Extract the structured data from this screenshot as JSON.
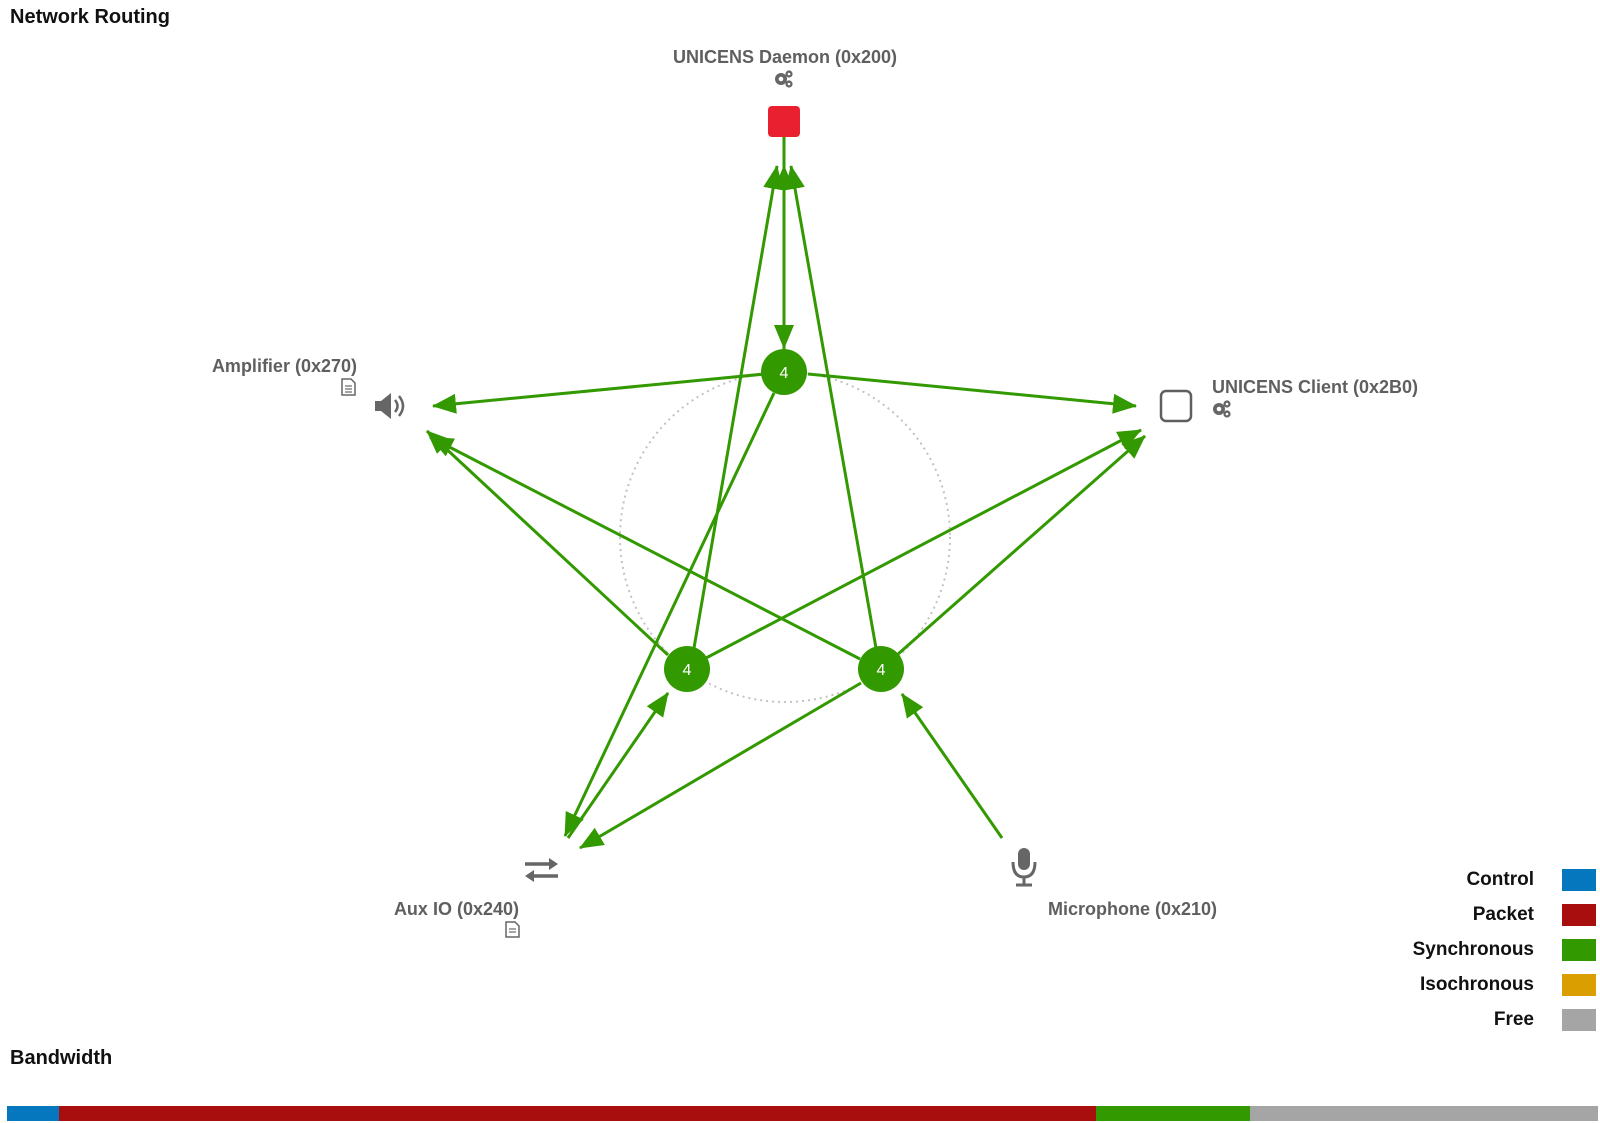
{
  "title": "Network Routing",
  "bandwidth_title": "Bandwidth",
  "colors": {
    "control": "#0477BF",
    "packet": "#A90E0E",
    "synchronous": "#339900",
    "isochronous": "#DB9E00",
    "free": "#A5A5A5",
    "daemon_square": "#E8202F",
    "label_gray": "#5F5F5F"
  },
  "nodes": {
    "daemon": {
      "label": "UNICENS Daemon (0x200)",
      "icons": [
        "gears-icon",
        "stop-square-icon"
      ]
    },
    "client": {
      "label": "UNICENS Client (0x2B0)",
      "icons": [
        "square-outline-icon",
        "gears-icon"
      ]
    },
    "amplifier": {
      "label": "Amplifier (0x270)",
      "icons": [
        "document-icon",
        "speaker-icon"
      ]
    },
    "auxio": {
      "label": "Aux IO (0x240)",
      "icons": [
        "exchange-arrows-icon",
        "document-icon"
      ]
    },
    "microphone": {
      "label": "Microphone (0x210)",
      "icons": [
        "microphone-icon"
      ]
    }
  },
  "hubs": {
    "top": {
      "label": "4"
    },
    "left": {
      "label": "4"
    },
    "right": {
      "label": "4"
    }
  },
  "legend": [
    {
      "key": "control",
      "label": "Control"
    },
    {
      "key": "packet",
      "label": "Packet"
    },
    {
      "key": "synchronous",
      "label": "Synchronous"
    },
    {
      "key": "isochronous",
      "label": "Isochronous"
    },
    {
      "key": "free",
      "label": "Free"
    }
  ],
  "bandwidth": [
    {
      "type": "control",
      "fraction": 0.0327
    },
    {
      "type": "packet",
      "fraction": 0.6519
    },
    {
      "type": "synchronous",
      "fraction": 0.0968
    },
    {
      "type": "free",
      "fraction": 0.2186
    }
  ]
}
